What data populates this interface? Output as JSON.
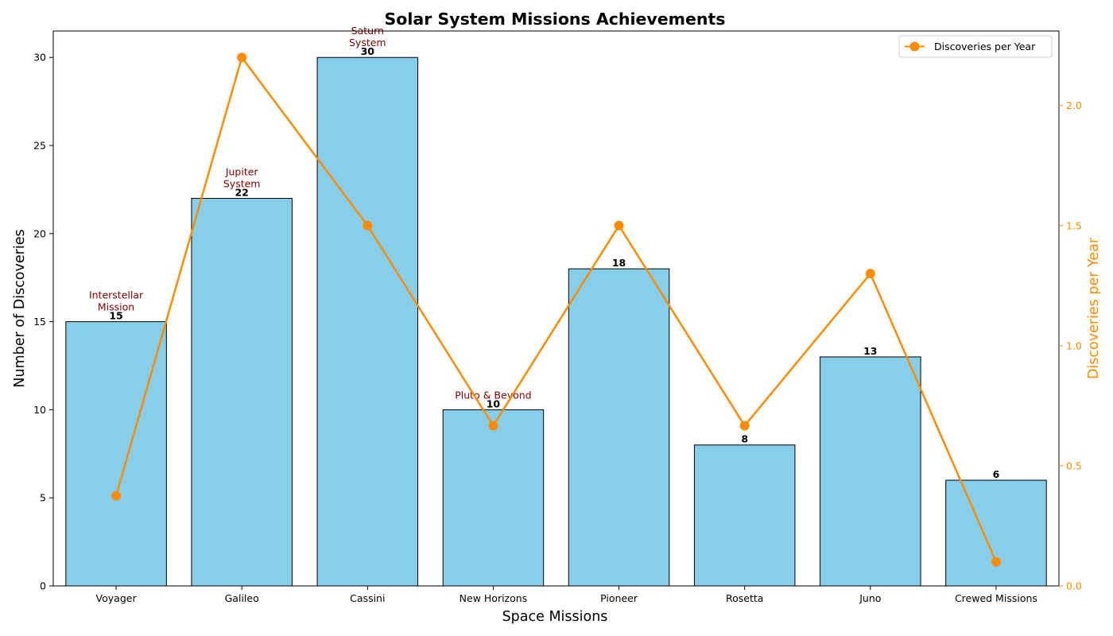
{
  "colors": {
    "bar_fill": "#87CEEB",
    "bar_edge": "#000000",
    "line": "#FF8C00",
    "annotation": "#800000",
    "axis": "#000000"
  },
  "chart_data": {
    "type": "bar",
    "title": "Solar System Missions Achievements",
    "xlabel": "Space Missions",
    "ylabel": "Number of Discoveries",
    "y2label": "Discoveries per Year",
    "categories": [
      "Voyager",
      "Galileo",
      "Cassini",
      "New Horizons",
      "Pioneer",
      "Rosetta",
      "Juno",
      "Crewed Missions"
    ],
    "series": [
      {
        "values": [
          15,
          22,
          30,
          10,
          18,
          8,
          13,
          6
        ],
        "axis": "left",
        "kind": "bar",
        "data_labels": [
          "15",
          "22",
          "30",
          "10",
          "18",
          "8",
          "13",
          "6"
        ]
      },
      {
        "name": "Discoveries per Year",
        "values": [
          0.375,
          2.2,
          1.5,
          0.667,
          1.5,
          0.667,
          1.3,
          0.1
        ],
        "axis": "right",
        "kind": "line",
        "marker": "circle"
      }
    ],
    "ylim": [
      0,
      31.5
    ],
    "y2lim": [
      0,
      2.31
    ],
    "yticks": [
      "0",
      "5",
      "10",
      "15",
      "20",
      "25",
      "30"
    ],
    "y2ticks": [
      "0.0",
      "0.5",
      "1.0",
      "1.5",
      "2.0"
    ],
    "annotations": [
      {
        "category": "Voyager",
        "lines": [
          "Interstellar",
          "Mission"
        ]
      },
      {
        "category": "Galileo",
        "lines": [
          "Jupiter",
          "System"
        ]
      },
      {
        "category": "Cassini",
        "lines": [
          "Saturn",
          "System"
        ]
      },
      {
        "category": "New Horizons",
        "lines": [
          "Pluto & Beyond"
        ]
      }
    ],
    "legend": {
      "position": "top-right",
      "entries": [
        "Discoveries per Year"
      ]
    },
    "grid": false
  }
}
